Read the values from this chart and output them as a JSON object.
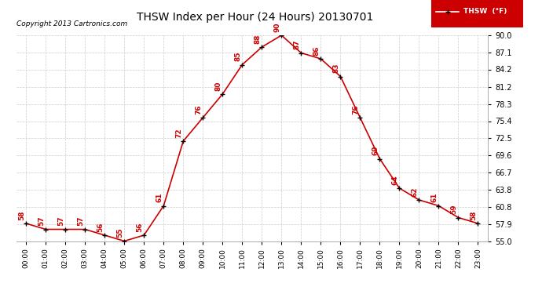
{
  "title": "THSW Index per Hour (24 Hours) 20130701",
  "copyright": "Copyright 2013 Cartronics.com",
  "legend_label": "THSW  (°F)",
  "hours": [
    0,
    1,
    2,
    3,
    4,
    5,
    6,
    7,
    8,
    9,
    10,
    11,
    12,
    13,
    14,
    15,
    16,
    17,
    18,
    19,
    20,
    21,
    22,
    23
  ],
  "values": [
    58,
    57,
    57,
    57,
    56,
    55,
    56,
    61,
    72,
    76,
    80,
    85,
    88,
    90,
    87,
    86,
    83,
    76,
    69,
    64,
    62,
    61,
    59,
    58
  ],
  "xlim": [
    -0.5,
    23.5
  ],
  "ylim": [
    55.0,
    90.0
  ],
  "yticks": [
    55.0,
    57.9,
    60.8,
    63.8,
    66.7,
    69.6,
    72.5,
    75.4,
    78.3,
    81.2,
    84.2,
    87.1,
    90.0
  ],
  "line_color": "#cc0000",
  "marker_color": "#000000",
  "grid_color": "#cccccc",
  "bg_color": "#ffffff",
  "label_color": "#cc0000",
  "title_color": "#000000",
  "copyright_color": "#000000",
  "legend_bg": "#cc0000",
  "legend_text_color": "#ffffff"
}
